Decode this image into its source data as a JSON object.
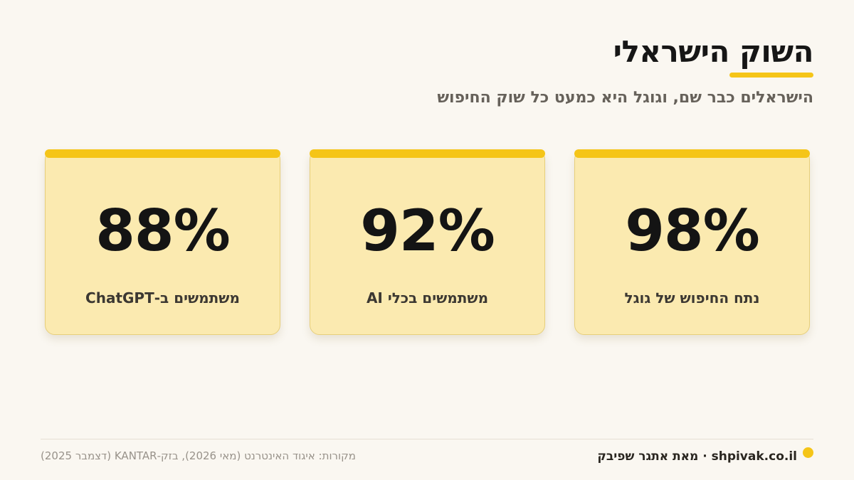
{
  "header": {
    "title": "השוק הישראלי",
    "subtitle": "הישראלים כבר שם, וגוגל היא כמעט כל שוק החיפוש"
  },
  "stats": [
    {
      "value": "98%",
      "label": "נתח החיפוש של גוגל"
    },
    {
      "value": "92%",
      "label": "משתמשים בכלי AI"
    },
    {
      "value": "88%",
      "label": "משתמשים ב-ChatGPT"
    }
  ],
  "footer": {
    "brand": "shpivak.co.il · מאת אתגר שפיבק",
    "sources": "מקורות: איגוד האינטרנט (מאי 2026), בזק-KANTAR (דצמבר 2025)"
  },
  "colors": {
    "accent": "#f5c518",
    "card_bg": "#fbeab0",
    "background": "#faf7f1"
  }
}
